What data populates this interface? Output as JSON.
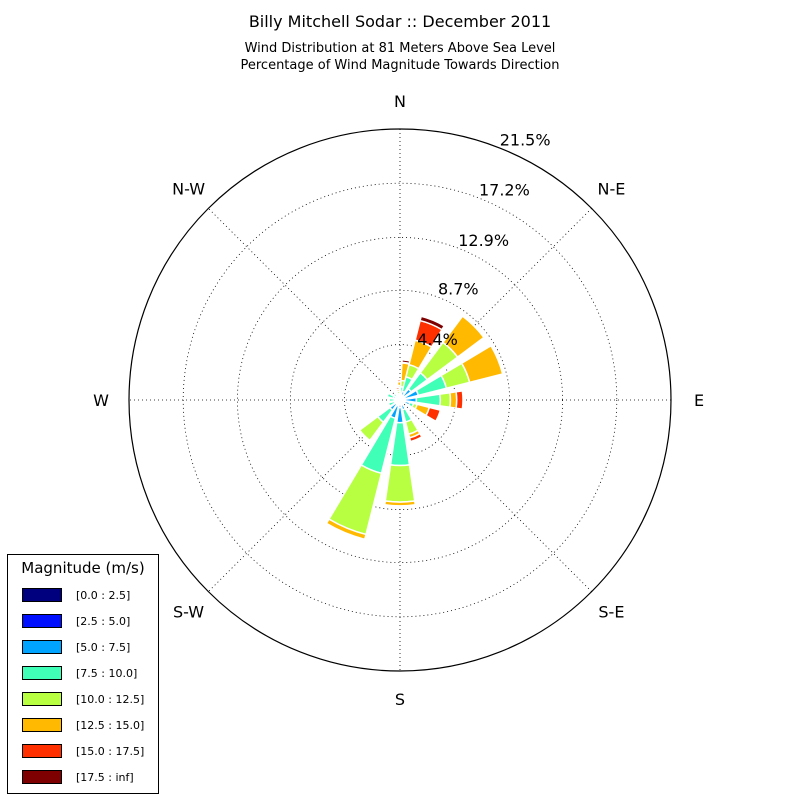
{
  "header": {
    "title": "Billy Mitchell Sodar :: December 2011",
    "subtitle_line1": "Wind Distribution at 81 Meters Above Sea Level",
    "subtitle_line2": "Percentage of Wind Magnitude Towards Direction"
  },
  "legend": {
    "title": "Magnitude (m/s)",
    "items": [
      {
        "label": "[0.0 : 2.5]",
        "color": "#00007f"
      },
      {
        "label": "[2.5 : 5.0]",
        "color": "#0010ff"
      },
      {
        "label": "[5.0 : 7.5]",
        "color": "#00a4ff"
      },
      {
        "label": "[7.5 : 10.0]",
        "color": "#40ffb7"
      },
      {
        "label": "[10.0 : 12.5]",
        "color": "#b7ff40"
      },
      {
        "label": "[12.5 : 15.0]",
        "color": "#ffb900"
      },
      {
        "label": "[15.0 : 17.5]",
        "color": "#ff3000"
      },
      {
        "label": "[17.5 : inf]",
        "color": "#7f0000"
      }
    ]
  },
  "chart_data": {
    "type": "windrose",
    "direction_labels": [
      "N",
      "N-E",
      "E",
      "S-E",
      "S",
      "S-W",
      "W",
      "N-W"
    ],
    "radial_tick_labels": [
      "4.4%",
      "8.7%",
      "12.9%",
      "17.2%",
      "21.5%"
    ],
    "radial_ticks": [
      4.4,
      8.7,
      12.9,
      17.2,
      21.5
    ],
    "rmax": 21.5,
    "grid": true,
    "legend_position": "bottom-left",
    "bins": [
      "[0.0 : 2.5]",
      "[2.5 : 5.0]",
      "[5.0 : 7.5]",
      "[7.5 : 10.0]",
      "[10.0 : 12.5]",
      "[12.5 : 15.0]",
      "[15.0 : 17.5]",
      "[17.5 : inf]"
    ],
    "sectors": [
      {
        "direction": 0,
        "values": [
          0.1,
          0.15,
          0.2,
          0.3,
          0.4,
          0.3,
          0.15,
          0.0
        ]
      },
      {
        "direction": 11.25,
        "values": [
          0.1,
          0.15,
          0.3,
          0.5,
          0.5,
          1.4,
          0.05,
          0.2
        ]
      },
      {
        "direction": 22.5,
        "values": [
          0.1,
          0.2,
          0.4,
          1.2,
          1.0,
          2.0,
          1.6,
          0.35
        ]
      },
      {
        "direction": 45,
        "values": [
          0.1,
          0.2,
          0.8,
          1.6,
          3.0,
          2.6,
          0.0,
          0.0
        ]
      },
      {
        "direction": 67.5,
        "values": [
          0.1,
          0.3,
          1.1,
          2.3,
          1.9,
          2.7,
          0.0,
          0.0
        ]
      },
      {
        "direction": 90,
        "values": [
          0.1,
          0.2,
          1.0,
          1.9,
          0.8,
          0.5,
          0.5,
          0.0
        ]
      },
      {
        "direction": 112.5,
        "values": [
          0.1,
          0.2,
          0.5,
          0.3,
          0.3,
          1.0,
          0.9,
          0.0
        ]
      },
      {
        "direction": 157.5,
        "values": [
          0.1,
          0.2,
          0.5,
          1.0,
          1.0,
          0.3,
          0.3,
          0.0
        ]
      },
      {
        "direction": 180,
        "values": [
          0.1,
          0.5,
          1.2,
          3.4,
          2.9,
          0.3,
          0.0,
          0.0
        ]
      },
      {
        "direction": 202.5,
        "values": [
          0.1,
          0.4,
          1.0,
          4.5,
          5.0,
          0.4,
          0.0,
          0.0
        ]
      },
      {
        "direction": 225,
        "values": [
          0.1,
          0.3,
          0.6,
          1.2,
          1.8,
          0.0,
          0.0,
          0.0
        ]
      },
      {
        "direction": 247.5,
        "values": [
          0.05,
          0.1,
          0.3,
          0.5,
          0.0,
          0.0,
          0.0,
          0.0
        ]
      },
      {
        "direction": 270,
        "values": [
          0.05,
          0.1,
          0.3,
          0.4,
          0.0,
          0.0,
          0.0,
          0.0
        ]
      },
      {
        "direction": 292.5,
        "values": [
          0.05,
          0.1,
          0.4,
          0.5,
          0.0,
          0.0,
          0.0,
          0.0
        ]
      },
      {
        "direction": 315,
        "values": [
          0.05,
          0.1,
          0.2,
          0.3,
          0.0,
          0.0,
          0.0,
          0.0
        ]
      },
      {
        "direction": 348.75,
        "values": [
          0.05,
          0.1,
          0.15,
          0.2,
          0.2,
          0.15,
          0.15,
          0.0
        ]
      }
    ]
  }
}
